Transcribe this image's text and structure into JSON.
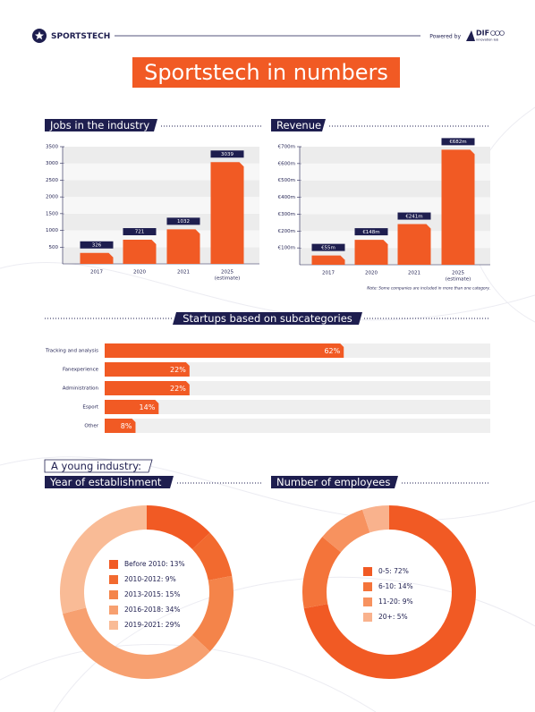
{
  "header": {
    "brand": "SPORTSTECH",
    "powered_by": "Powered by",
    "partner": "DIF",
    "partner_sub": "innovation lab",
    "title": "Sportstech in numbers"
  },
  "section_title": "A young industry:",
  "chart_data": [
    {
      "type": "bar",
      "title": "Jobs in the industry",
      "categories": [
        [
          "2017"
        ],
        [
          "2020"
        ],
        [
          "2021"
        ],
        [
          "2025",
          "(estimate)"
        ]
      ],
      "values": [
        326,
        721,
        1032,
        3039
      ],
      "color": "#f15a24",
      "ylim": [
        0,
        3500
      ],
      "yticks": [
        500,
        1000,
        1500,
        2000,
        2500,
        3000,
        3500
      ],
      "grid": true
    },
    {
      "type": "bar",
      "title": "Revenue",
      "categories": [
        [
          "2017"
        ],
        [
          "2020"
        ],
        [
          "2021"
        ],
        [
          "2025",
          "(estimate)"
        ]
      ],
      "values": [
        55,
        148,
        241,
        682
      ],
      "value_labels": [
        "€55m",
        "€148m",
        "€241m",
        "€682m"
      ],
      "color": "#f15a24",
      "ylim": [
        0,
        700
      ],
      "yticks": [
        {
          "value": 100,
          "label": "€100m"
        },
        {
          "value": 200,
          "label": "€200m"
        },
        {
          "value": 300,
          "label": "€300m"
        },
        {
          "value": 400,
          "label": "€400m"
        },
        {
          "value": 500,
          "label": "€500m"
        },
        {
          "value": 600,
          "label": "€600m"
        },
        {
          "value": 700,
          "label": "€700m"
        }
      ],
      "grid": true,
      "note": "Note: Some companies are included in more than one category."
    },
    {
      "type": "hbar",
      "title": "Startups based on subcategories",
      "categories": [
        "Tracking and analysis",
        "Fanexperience",
        "Administration",
        "Esport",
        "Other"
      ],
      "values": [
        62,
        22,
        22,
        14,
        8
      ],
      "value_labels": [
        "62%",
        "22%",
        "22%",
        "14%",
        "8%"
      ],
      "color": "#f15a24",
      "xlim": [
        0,
        100
      ]
    },
    {
      "type": "donut",
      "title": "Year of establishment",
      "labels": [
        "Before 2010: 13%",
        "2010-2012: 9%",
        "2013-2015: 15%",
        "2016-2018: 34%",
        "2019-2021: 29%"
      ],
      "values": [
        13,
        9,
        15,
        34,
        29
      ],
      "colors": [
        "#f15a24",
        "#f26a2f",
        "#f4844a",
        "#f7a070",
        "#f9bb96"
      ]
    },
    {
      "type": "donut",
      "title": "Number of employees",
      "labels": [
        "0-5: 72%",
        "6-10: 14%",
        "11-20: 9%",
        "20+: 5%"
      ],
      "values": [
        72,
        14,
        9,
        5
      ],
      "colors": [
        "#f15a24",
        "#f4743a",
        "#f7925f",
        "#f9b28d"
      ]
    }
  ]
}
